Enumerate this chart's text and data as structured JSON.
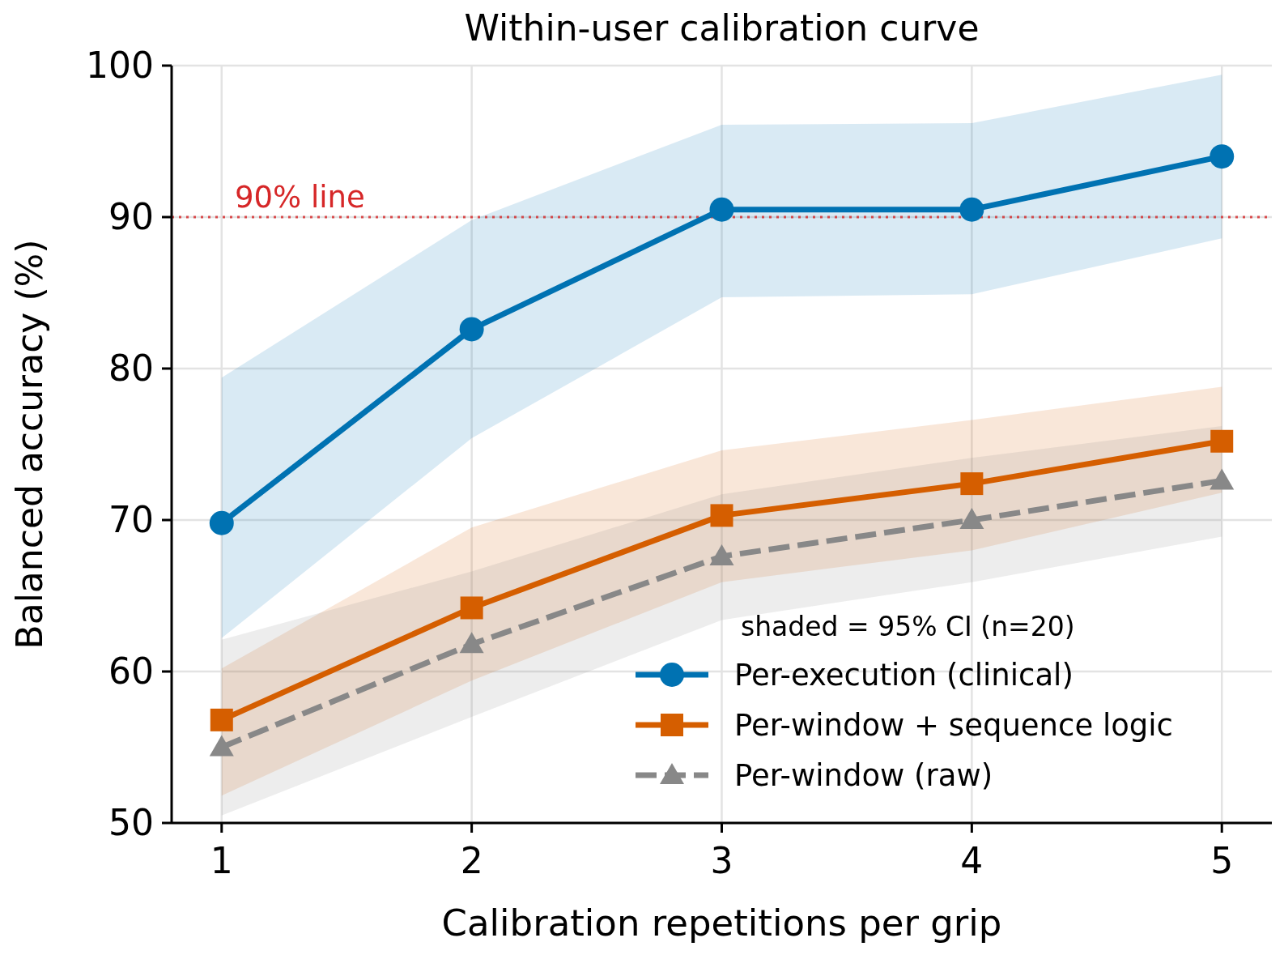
{
  "chart_data": {
    "type": "line",
    "title": "Within-user calibration curve",
    "xlabel": "Calibration repetitions per grip",
    "ylabel": "Balanced accuracy (%)",
    "legend_title": "shaded = 95% CI (n=20)",
    "x": [
      1,
      2,
      3,
      4,
      5
    ],
    "xlim": [
      0.8,
      5.2
    ],
    "xticks": [
      1,
      2,
      3,
      4,
      5
    ],
    "ylim": [
      50,
      100
    ],
    "yticks": [
      50,
      60,
      70,
      80,
      90,
      100
    ],
    "grid": true,
    "legend": "bottom right",
    "series": [
      {
        "name": "Per-execution (clinical)",
        "color": "#0072b2",
        "marker": "circle",
        "line_style": "solid",
        "values": [
          69.8,
          82.6,
          90.5,
          90.5,
          94.0
        ],
        "lower": [
          62.2,
          75.4,
          84.7,
          84.9,
          88.6
        ],
        "upper": [
          79.4,
          89.8,
          96.1,
          96.2,
          99.4
        ]
      },
      {
        "name": "Per-window + sequence logic",
        "color": "#d55e00",
        "marker": "square",
        "line_style": "solid",
        "values": [
          56.8,
          64.2,
          70.3,
          72.4,
          75.2
        ],
        "lower": [
          51.8,
          59.4,
          65.9,
          68.0,
          71.8
        ],
        "upper": [
          60.2,
          69.5,
          74.6,
          76.6,
          78.8
        ]
      },
      {
        "name": "Per-window (raw)",
        "color": "#888888",
        "marker": "triangle",
        "line_style": "dashed",
        "values": [
          55.0,
          61.8,
          67.6,
          70.0,
          72.6
        ],
        "lower": [
          50.5,
          57.0,
          63.4,
          65.9,
          68.9
        ],
        "upper": [
          62.1,
          66.6,
          71.7,
          74.1,
          76.2
        ]
      }
    ],
    "ref_lines": [
      {
        "axis": "y",
        "value": 90,
        "label": "90% line",
        "color": "#d62728",
        "line_style": "dotted"
      }
    ]
  }
}
